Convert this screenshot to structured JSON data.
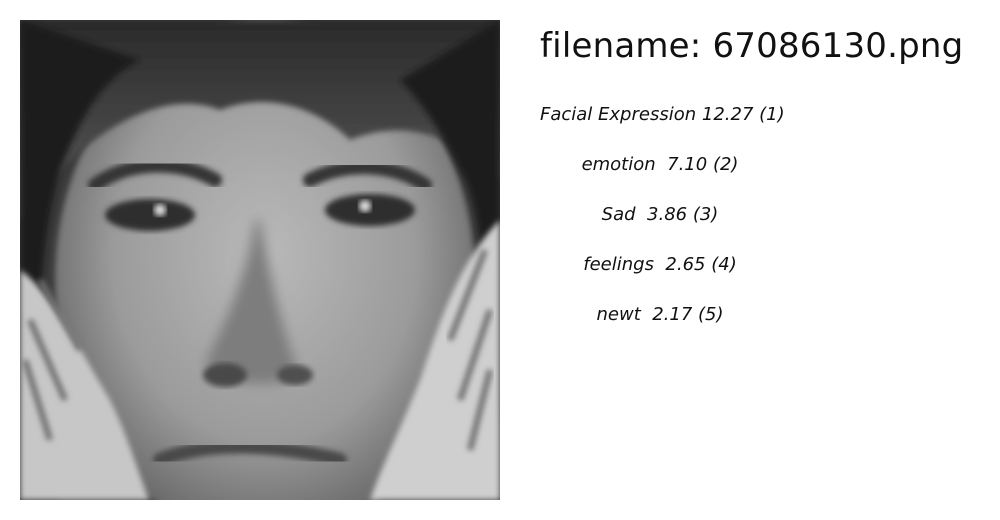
{
  "filename": "filename: 67086130.png",
  "photo": {
    "icon": "face-photo"
  },
  "labels": [
    {
      "name": "Facial Expression",
      "score": "12.27",
      "rank": "(1)"
    },
    {
      "name": "emotion",
      "score": "7.10",
      "rank": "(2)"
    },
    {
      "name": "Sad",
      "score": "3.86",
      "rank": "(3)"
    },
    {
      "name": "feelings",
      "score": "2.65",
      "rank": "(4)"
    },
    {
      "name": "newt",
      "score": "2.17",
      "rank": "(5)"
    }
  ]
}
